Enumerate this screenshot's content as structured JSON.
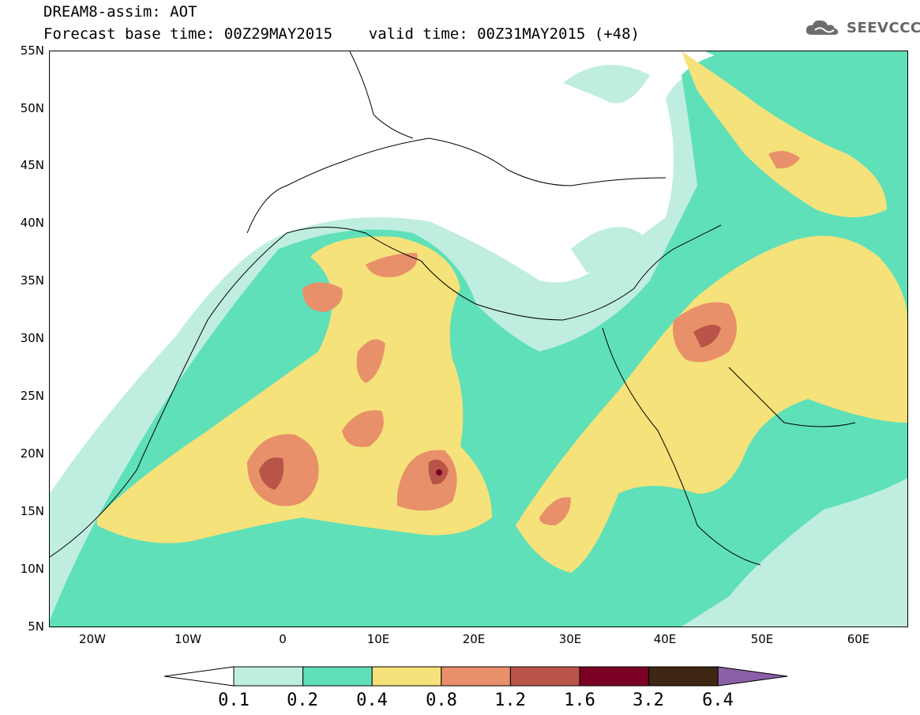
{
  "title": {
    "line1": "DREAM8-assim: AOT",
    "line2": "Forecast base time: 00Z29MAY2015    valid time: 00Z31MAY2015 (+48)"
  },
  "logo": {
    "text": "SEEVCCC",
    "icon": "cloud-logo-icon"
  },
  "axes": {
    "lat_labels": [
      "55N",
      "50N",
      "45N",
      "40N",
      "35N",
      "30N",
      "25N",
      "20N",
      "15N",
      "10N",
      "5N"
    ],
    "lon_labels": [
      "20W",
      "10W",
      "0",
      "10E",
      "20E",
      "30E",
      "40E",
      "50E",
      "60E"
    ]
  },
  "colorbar": {
    "labels": [
      "0.1",
      "0.2",
      "0.4",
      "0.8",
      "1.2",
      "1.6",
      "3.2",
      "6.4"
    ],
    "colors": [
      "#ffffff",
      "#bfeee0",
      "#5fe0b8",
      "#f5e27a",
      "#e8906a",
      "#b85448",
      "#7a0024",
      "#3d2612",
      "#8a60a8"
    ]
  }
}
